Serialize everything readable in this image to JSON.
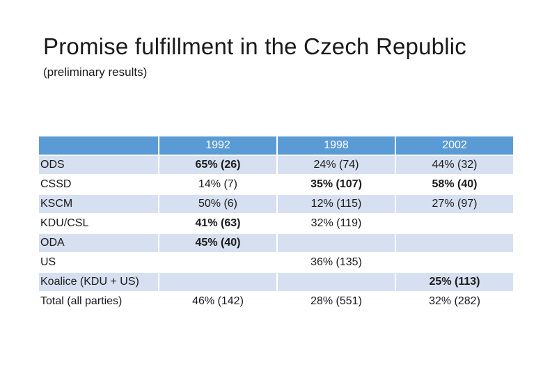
{
  "slide": {
    "title": "Promise fulfillment in the Czech Republic",
    "subtitle": "(preliminary results)"
  },
  "table": {
    "header": [
      "",
      "1992",
      "1998",
      "2002"
    ],
    "rows": [
      {
        "party": "ODS",
        "y1992": "65% (26)",
        "y1998": "24% (74)",
        "y2002": "44% (32)"
      },
      {
        "party": "CSSD",
        "y1992": "14% (7)",
        "y1998": "35% (107)",
        "y2002": "58% (40)"
      },
      {
        "party": "KSCM",
        "y1992": "50% (6)",
        "y1998": "12% (115)",
        "y2002": "27% (97)"
      },
      {
        "party": "KDU/CSL",
        "y1992": "41% (63)",
        "y1998": "32% (119)",
        "y2002": ""
      },
      {
        "party": "ODA",
        "y1992": "45% (40)",
        "y1998": "",
        "y2002": ""
      },
      {
        "party": "US",
        "y1992": "",
        "y1998": "36% (135)",
        "y2002": ""
      },
      {
        "party": "Koalice (KDU + US)",
        "y1992": "",
        "y1998": "",
        "y2002": "25% (113)"
      },
      {
        "party": "Total (all parties)",
        "y1992": "46% (142)",
        "y1998": "28% (551)",
        "y2002": "32% (282)"
      }
    ]
  },
  "colors": {
    "header_fill": "#5b9bd5",
    "band_fill": "#d6e0f0"
  }
}
